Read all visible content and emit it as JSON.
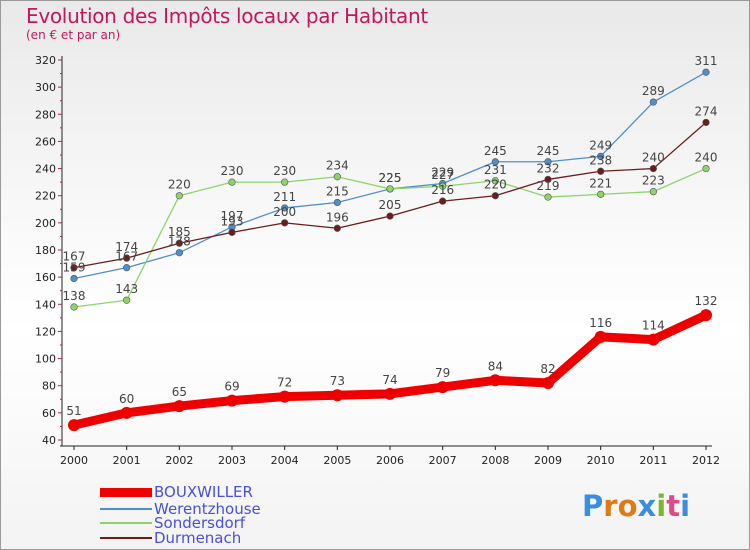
{
  "title": "Evolution des Impôts locaux par Habitant",
  "subtitle": "(en € et par an)",
  "logo": {
    "text": "Proxiti",
    "letters": [
      "P",
      "r",
      "o",
      "x",
      "i",
      "t",
      "i"
    ],
    "colors": [
      "#3b8de0",
      "#e07a14",
      "#e07a14",
      "#3b8de0",
      "#7cb82f",
      "#e04a8a",
      "#3b8de0"
    ]
  },
  "chart_data": {
    "type": "line",
    "title": "Evolution des Impôts locaux par Habitant",
    "subtitle": "(en € et par an)",
    "x": [
      2000,
      2001,
      2002,
      2003,
      2004,
      2005,
      2006,
      2007,
      2008,
      2009,
      2010,
      2011,
      2012
    ],
    "xticks": [
      "2000",
      "2001",
      "2002",
      "2003",
      "2004",
      "2005",
      "2006",
      "2007",
      "2008",
      "2009",
      "2010",
      "2011",
      "2012"
    ],
    "ylim": [
      40,
      320
    ],
    "yticks": [
      40,
      60,
      80,
      100,
      120,
      140,
      160,
      180,
      200,
      220,
      240,
      260,
      280,
      300,
      320
    ],
    "grid": false,
    "legend_position": "bottom-left",
    "series": [
      {
        "name": "BOUXWILLER",
        "color": "#ee0000",
        "values": [
          51,
          60,
          65,
          69,
          72,
          73,
          74,
          79,
          84,
          82,
          116,
          114,
          132
        ]
      },
      {
        "name": "Werentzhouse",
        "color": "#4f8fc8",
        "values": [
          159,
          167,
          178,
          197,
          211,
          215,
          225,
          229,
          245,
          245,
          249,
          289,
          311
        ]
      },
      {
        "name": "Sondersdorf",
        "color": "#8ed46a",
        "values": [
          138,
          143,
          220,
          230,
          230,
          234,
          225,
          227,
          231,
          219,
          221,
          223,
          240
        ]
      },
      {
        "name": "Durmenach",
        "color": "#6b1d1d",
        "values": [
          167,
          174,
          185,
          193,
          200,
          196,
          205,
          216,
          220,
          232,
          238,
          240,
          274
        ]
      }
    ]
  }
}
